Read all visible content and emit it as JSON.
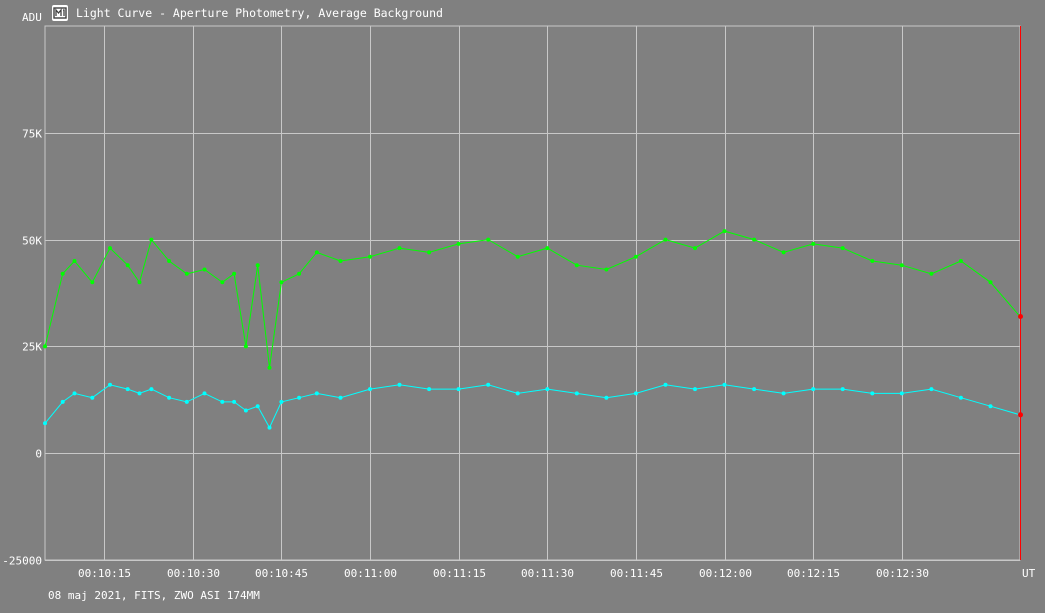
{
  "title": "Light Curve - Aperture Photometry, Average Background",
  "footer": "08 maj 2021, FITS, ZWO ASI 174MM",
  "colors": {
    "background": "#808080",
    "grid": "#c8c8c8",
    "text": "#ffffff",
    "series_green": "#00ff00",
    "series_cyan": "#00ffff",
    "cursor": "#ff0000"
  },
  "chart_data": {
    "type": "line",
    "ylabel": "ADU",
    "xlabel": "UT",
    "ylim": [
      -25000,
      100000
    ],
    "xlim": [
      "00:10:05",
      "00:12:50"
    ],
    "x_ticks": [
      "00:10:15",
      "00:10:30",
      "00:10:45",
      "00:11:00",
      "00:11:15",
      "00:11:30",
      "00:11:45",
      "00:12:00",
      "00:12:15",
      "00:12:30"
    ],
    "y_ticks": [
      {
        "value": 75000,
        "label": "75K"
      },
      {
        "value": 50000,
        "label": "50K"
      },
      {
        "value": 25000,
        "label": "25K"
      },
      {
        "value": 0,
        "label": "0"
      },
      {
        "value": -25000,
        "label": "-25000"
      }
    ],
    "grid": true,
    "series": [
      {
        "color": "#00ff00",
        "x": [
          "00:10:05",
          "00:10:08",
          "00:10:10",
          "00:10:13",
          "00:10:16",
          "00:10:19",
          "00:10:21",
          "00:10:23",
          "00:10:26",
          "00:10:29",
          "00:10:32",
          "00:10:35",
          "00:10:37",
          "00:10:39",
          "00:10:41",
          "00:10:43",
          "00:10:45",
          "00:10:48",
          "00:10:51",
          "00:10:55",
          "00:11:00",
          "00:11:05",
          "00:11:10",
          "00:11:15",
          "00:11:20",
          "00:11:25",
          "00:11:30",
          "00:11:35",
          "00:11:40",
          "00:11:45",
          "00:11:50",
          "00:11:55",
          "00:12:00",
          "00:12:05",
          "00:12:10",
          "00:12:15",
          "00:12:20",
          "00:12:25",
          "00:12:30",
          "00:12:35",
          "00:12:40",
          "00:12:45",
          "00:12:50"
        ],
        "y": [
          25000,
          42000,
          45000,
          40000,
          48000,
          44000,
          40000,
          50000,
          45000,
          42000,
          43000,
          40000,
          42000,
          25000,
          44000,
          20000,
          40000,
          42000,
          47000,
          45000,
          46000,
          48000,
          47000,
          49000,
          50000,
          46000,
          48000,
          44000,
          43000,
          46000,
          50000,
          48000,
          52000,
          50000,
          47000,
          49000,
          48000,
          45000,
          44000,
          42000,
          45000,
          40000,
          32000
        ]
      },
      {
        "color": "#00ffff",
        "x": [
          "00:10:05",
          "00:10:08",
          "00:10:10",
          "00:10:13",
          "00:10:16",
          "00:10:19",
          "00:10:21",
          "00:10:23",
          "00:10:26",
          "00:10:29",
          "00:10:32",
          "00:10:35",
          "00:10:37",
          "00:10:39",
          "00:10:41",
          "00:10:43",
          "00:10:45",
          "00:10:48",
          "00:10:51",
          "00:10:55",
          "00:11:00",
          "00:11:05",
          "00:11:10",
          "00:11:15",
          "00:11:20",
          "00:11:25",
          "00:11:30",
          "00:11:35",
          "00:11:40",
          "00:11:45",
          "00:11:50",
          "00:11:55",
          "00:12:00",
          "00:12:05",
          "00:12:10",
          "00:12:15",
          "00:12:20",
          "00:12:25",
          "00:12:30",
          "00:12:35",
          "00:12:40",
          "00:12:45",
          "00:12:50"
        ],
        "y": [
          7000,
          12000,
          14000,
          13000,
          16000,
          15000,
          14000,
          15000,
          13000,
          12000,
          14000,
          12000,
          12000,
          10000,
          11000,
          6000,
          12000,
          13000,
          14000,
          13000,
          15000,
          16000,
          15000,
          15000,
          16000,
          14000,
          15000,
          14000,
          13000,
          14000,
          16000,
          15000,
          16000,
          15000,
          14000,
          15000,
          15000,
          14000,
          14000,
          15000,
          13000,
          11000,
          9000
        ]
      }
    ]
  }
}
